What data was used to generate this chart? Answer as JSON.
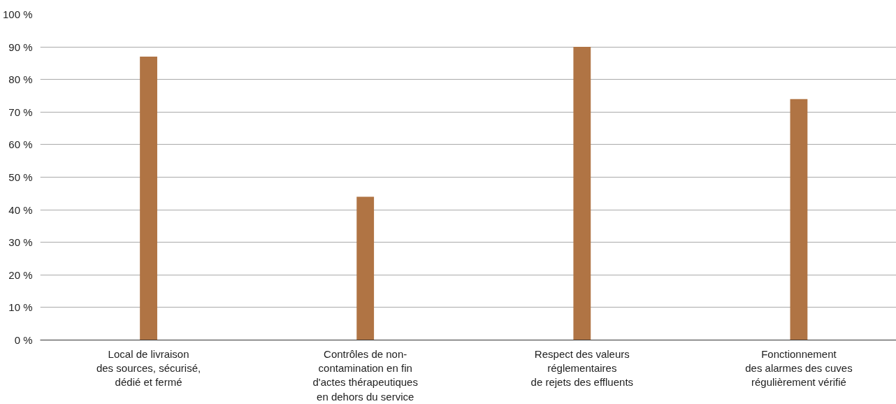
{
  "chart_data": {
    "type": "bar",
    "categories": [
      "Local de livraison\ndes sources, sécurisé,\ndédié et fermé",
      "Contrôles de non-\ncontamination en fin\nd'actes thérapeutiques\nen dehors du service",
      "Respect des valeurs\nréglementaires\nde rejets des effluents",
      "Fonctionnement\ndes alarmes des cuves\nrégulièrement vérifié"
    ],
    "values": [
      87,
      44,
      90,
      74
    ],
    "color": "#b07444",
    "ylim": [
      0,
      100
    ],
    "yticks": [
      {
        "value": 0,
        "label": "0 %"
      },
      {
        "value": 10,
        "label": "10 %"
      },
      {
        "value": 20,
        "label": "20 %"
      },
      {
        "value": 30,
        "label": "30 %"
      },
      {
        "value": 40,
        "label": "40 %"
      },
      {
        "value": 50,
        "label": "50 %"
      },
      {
        "value": 60,
        "label": "60 %"
      },
      {
        "value": 70,
        "label": "70 %"
      },
      {
        "value": 80,
        "label": "80 %"
      },
      {
        "value": 90,
        "label": "90 %"
      },
      {
        "value": 100,
        "label": "100 %"
      }
    ],
    "grid": "y"
  }
}
